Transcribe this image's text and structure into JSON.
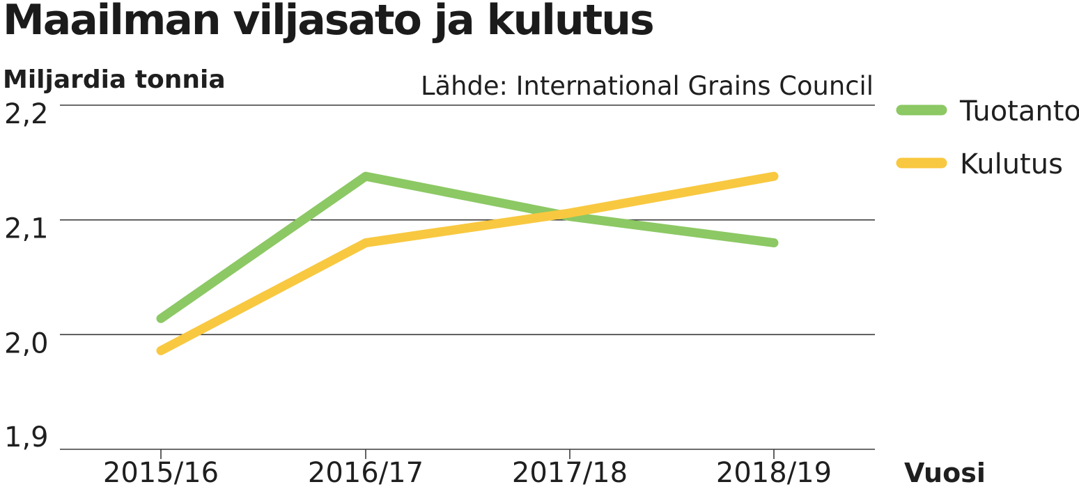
{
  "chart_data": {
    "type": "line",
    "title": "Maailman viljasato ja kulutus",
    "ylabel": "Miljardia tonnia",
    "xlabel": "Vuosi",
    "source": "Lähde: International Grains Council",
    "categories": [
      "2015/16",
      "2016/17",
      "2017/18",
      "2018/19"
    ],
    "ylim": [
      1.9,
      2.2
    ],
    "yticks": [
      {
        "value": 1.9,
        "label": "1,9"
      },
      {
        "value": 2.0,
        "label": "2,0"
      },
      {
        "value": 2.1,
        "label": "2,1"
      },
      {
        "value": 2.2,
        "label": "2,2"
      }
    ],
    "grid": true,
    "legend_position": "right",
    "series": [
      {
        "name": "Tuotanto",
        "color": "#8cc864",
        "values": [
          2.014,
          2.138,
          2.103,
          2.08
        ]
      },
      {
        "name": "Kulutus",
        "color": "#f8c840",
        "values": [
          1.986,
          2.08,
          2.106,
          2.138
        ]
      }
    ]
  }
}
